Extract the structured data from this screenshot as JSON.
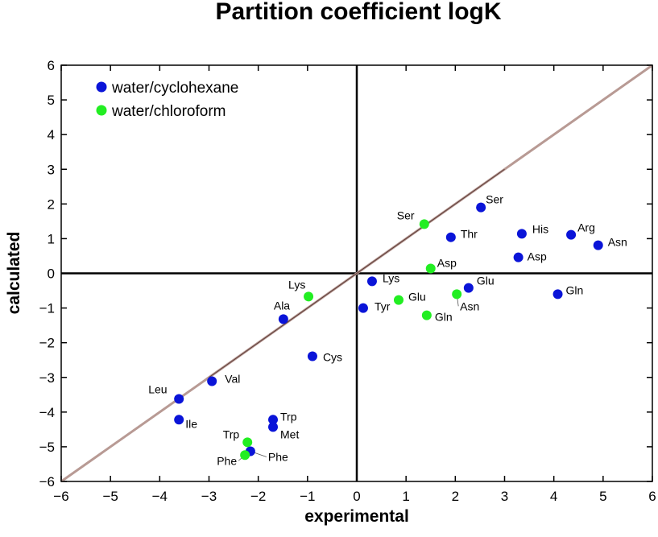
{
  "chart_data": {
    "type": "scatter",
    "title": "Partition coefficient logK",
    "xlabel": "experimental",
    "ylabel": "calculated",
    "xlim": [
      -6,
      6
    ],
    "ylim": [
      -6,
      6
    ],
    "xticks": [
      -6,
      -5,
      -4,
      -3,
      -2,
      -1,
      0,
      1,
      2,
      3,
      4,
      5,
      6
    ],
    "yticks": [
      -6,
      -5,
      -4,
      -3,
      -2,
      -1,
      0,
      1,
      2,
      3,
      4,
      5,
      6
    ],
    "grid": false,
    "legend_position": "top-left",
    "reference_line": {
      "name": "y = x",
      "from": [
        -6,
        -6
      ],
      "to": [
        6,
        6
      ],
      "color": "#b89a94"
    },
    "zero_lines": true,
    "series": [
      {
        "name": "water/cyclohexane",
        "color": "#0a14d8",
        "points": [
          {
            "label": "Ser",
            "x": 2.52,
            "y": 1.9
          },
          {
            "label": "Thr",
            "x": 1.91,
            "y": 1.04
          },
          {
            "label": "His",
            "x": 3.35,
            "y": 1.14
          },
          {
            "label": "Arg",
            "x": 4.35,
            "y": 1.11
          },
          {
            "label": "Asn",
            "x": 4.9,
            "y": 0.81
          },
          {
            "label": "Asp",
            "x": 3.28,
            "y": 0.46
          },
          {
            "label": "Lys",
            "x": 0.31,
            "y": -0.23
          },
          {
            "label": "Glu",
            "x": 2.27,
            "y": -0.42
          },
          {
            "label": "Gln",
            "x": 4.08,
            "y": -0.6
          },
          {
            "label": "Tyr",
            "x": 0.13,
            "y": -1.0
          },
          {
            "label": "Ala",
            "x": -1.49,
            "y": -1.32
          },
          {
            "label": "Cys",
            "x": -0.9,
            "y": -2.39
          },
          {
            "label": "Val",
            "x": -2.94,
            "y": -3.11
          },
          {
            "label": "Leu",
            "x": -3.61,
            "y": -3.62
          },
          {
            "label": "Ile",
            "x": -3.61,
            "y": -4.22
          },
          {
            "label": "Trp",
            "x": -1.7,
            "y": -4.22
          },
          {
            "label": "Met",
            "x": -1.7,
            "y": -4.43
          },
          {
            "label": "Phe",
            "x": -2.16,
            "y": -5.13
          }
        ]
      },
      {
        "name": "water/chloroform",
        "color": "#22ee22",
        "points": [
          {
            "label": "Ser",
            "x": 1.37,
            "y": 1.42
          },
          {
            "label": "Asp",
            "x": 1.5,
            "y": 0.14
          },
          {
            "label": "Lys",
            "x": -0.98,
            "y": -0.67
          },
          {
            "label": "Glu",
            "x": 0.85,
            "y": -0.77
          },
          {
            "label": "Asn",
            "x": 2.03,
            "y": -0.6
          },
          {
            "label": "Gln",
            "x": 1.42,
            "y": -1.21
          },
          {
            "label": "Trp",
            "x": -2.22,
            "y": -4.87
          },
          {
            "label": "Phe",
            "x": -2.27,
            "y": -5.24
          }
        ]
      }
    ]
  }
}
